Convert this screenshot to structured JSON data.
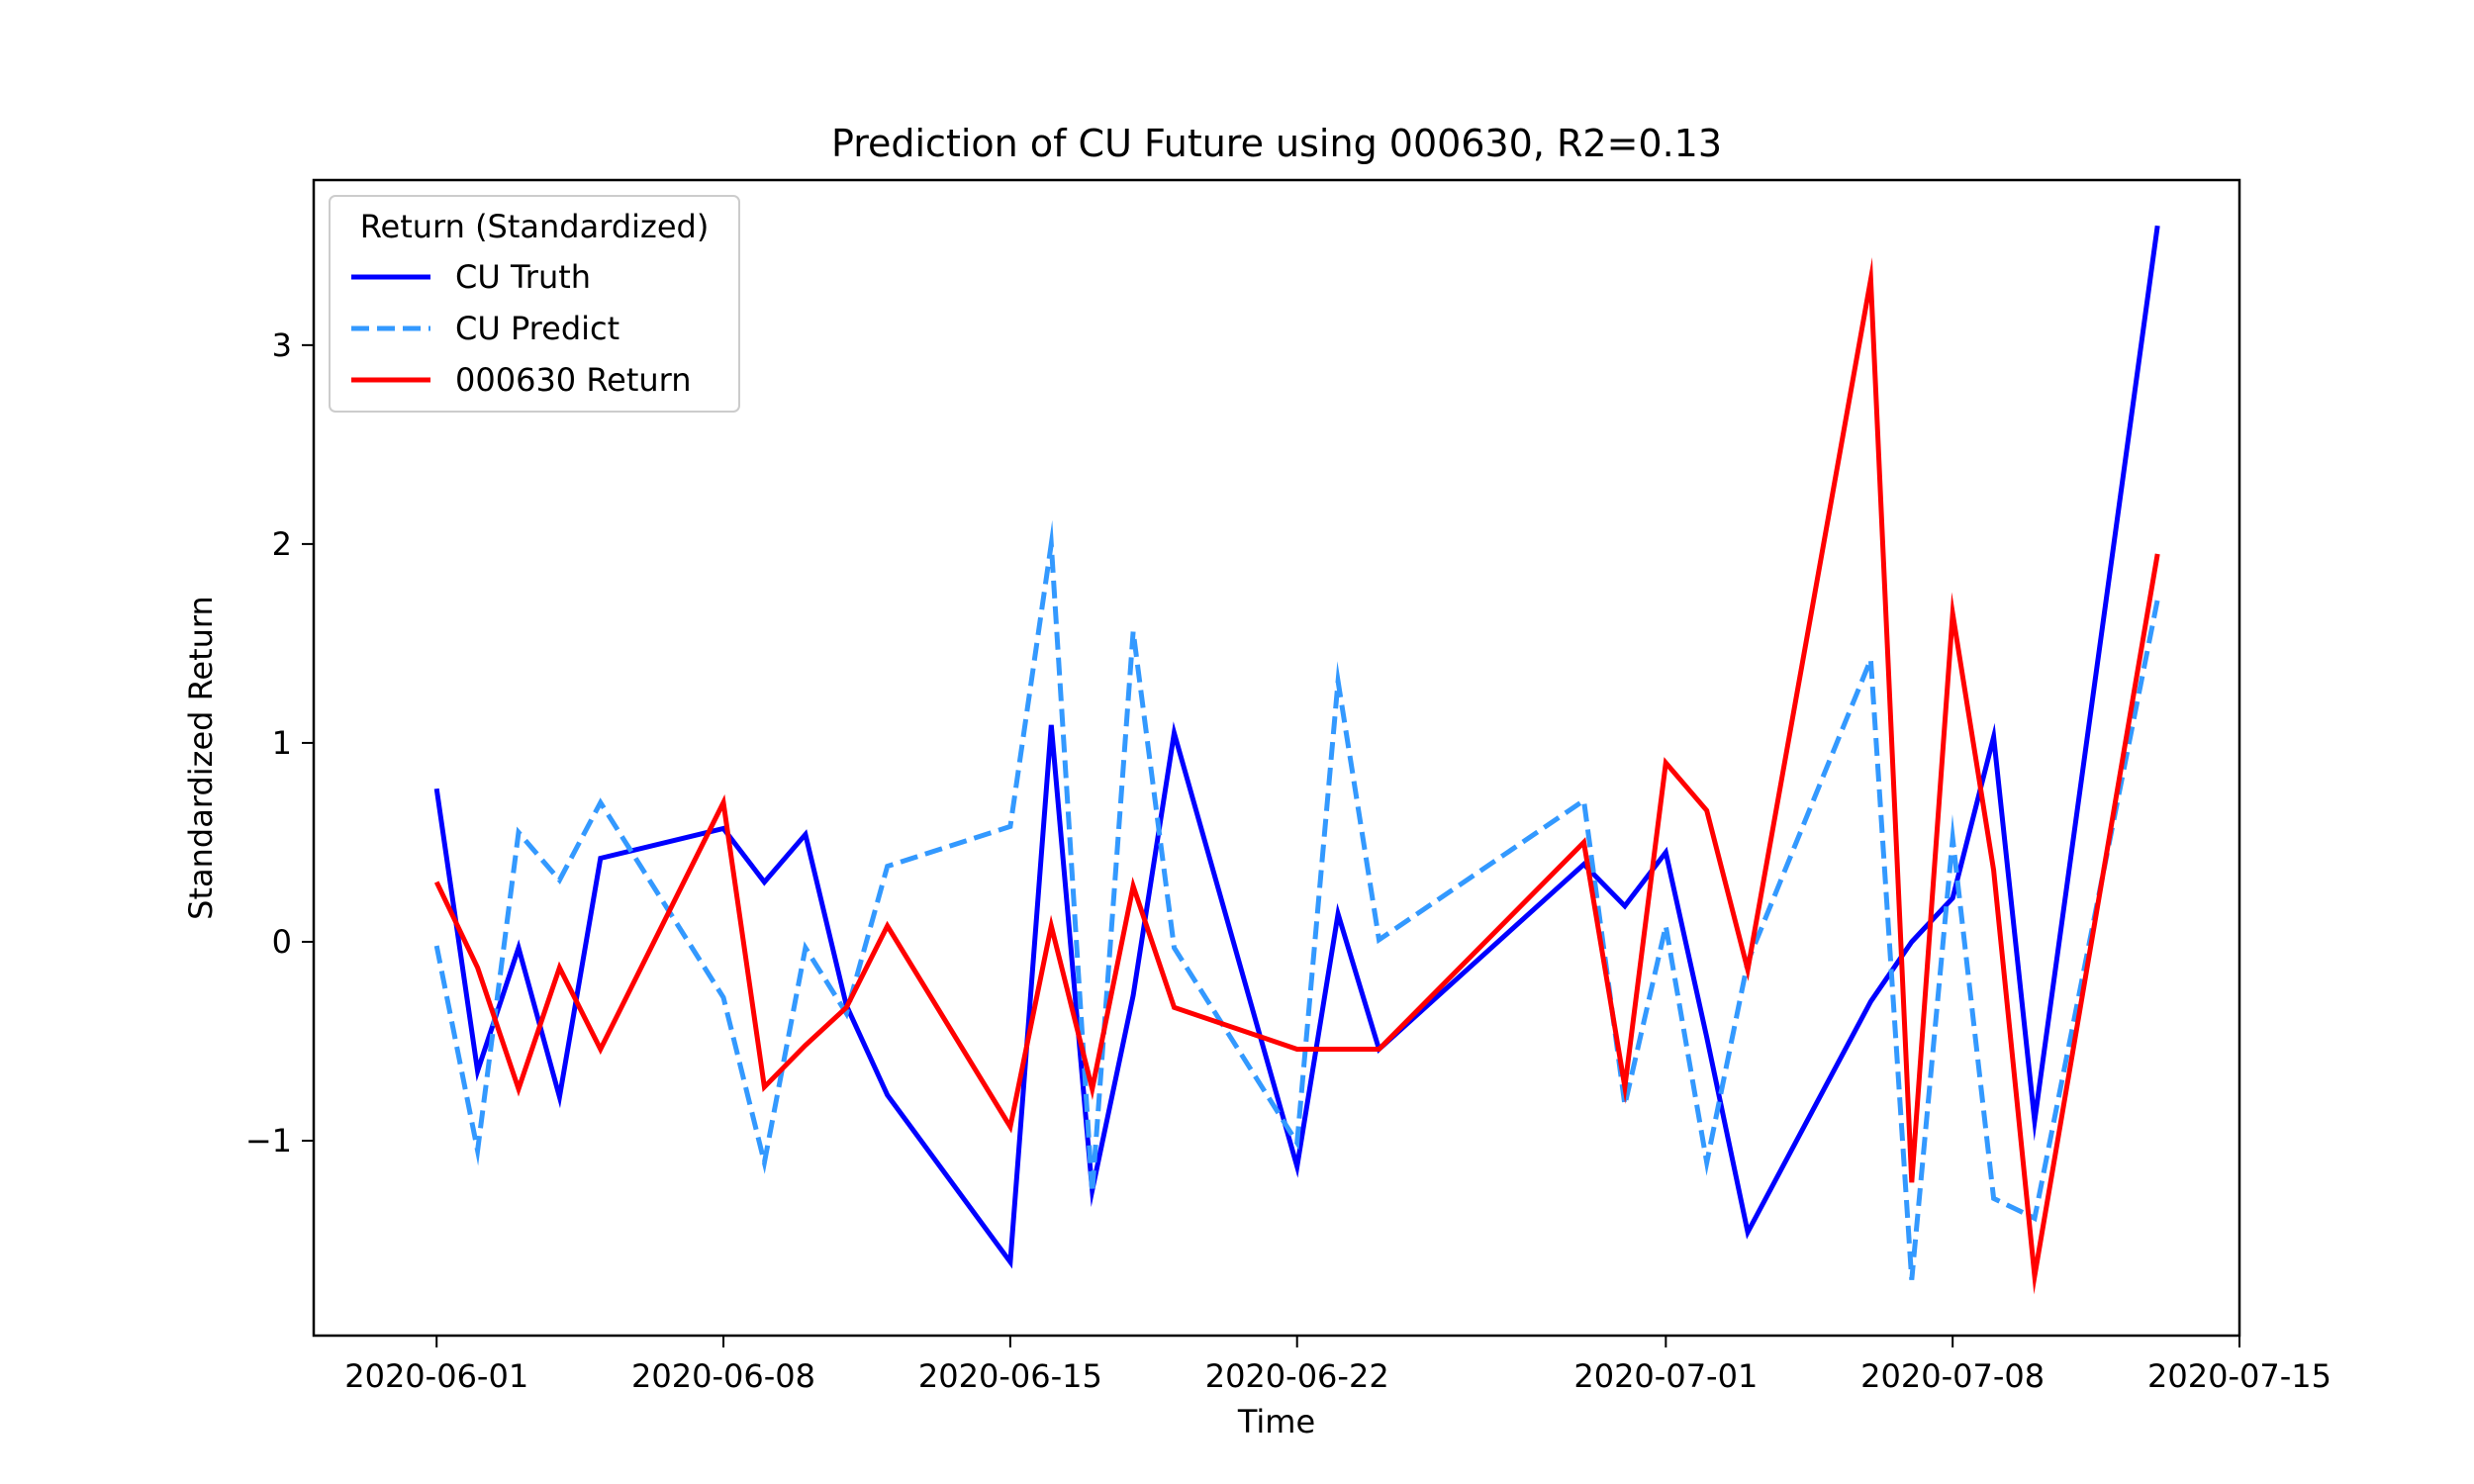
{
  "chart_data": {
    "type": "line",
    "title": "Prediction of CU Future using 000630, R2=0.13",
    "xlabel": "Time",
    "ylabel": "Standardized Return",
    "xlim": [
      "2020-05-29",
      "2020-07-15"
    ],
    "ylim": [
      -1.98,
      3.83
    ],
    "grid": false,
    "legend": {
      "title": "Return (Standardized)",
      "position": "top-left"
    },
    "x_ticks": [
      "2020-06-01",
      "2020-06-08",
      "2020-06-15",
      "2020-06-22",
      "2020-07-01",
      "2020-07-08",
      "2020-07-15"
    ],
    "y_ticks": [
      -1,
      0,
      1,
      2,
      3
    ],
    "y_tick_labels": [
      "−1",
      "0",
      "1",
      "2",
      "3"
    ],
    "x": [
      "2020-06-01",
      "2020-06-02",
      "2020-06-03",
      "2020-06-04",
      "2020-06-05",
      "2020-06-08",
      "2020-06-09",
      "2020-06-10",
      "2020-06-11",
      "2020-06-12",
      "2020-06-15",
      "2020-06-16",
      "2020-06-17",
      "2020-06-18",
      "2020-06-19",
      "2020-06-22",
      "2020-06-23",
      "2020-06-24",
      "2020-06-29",
      "2020-06-30",
      "2020-07-01",
      "2020-07-02",
      "2020-07-03",
      "2020-07-06",
      "2020-07-07",
      "2020-07-08",
      "2020-07-09",
      "2020-07-10",
      "2020-07-13"
    ],
    "series": [
      {
        "name": "CU Truth",
        "color": "#0000ff",
        "style": "solid",
        "values": [
          0.77,
          -0.65,
          -0.03,
          -0.78,
          0.42,
          0.57,
          0.3,
          0.54,
          -0.32,
          -0.77,
          -1.61,
          1.09,
          -1.25,
          -0.27,
          1.05,
          -1.13,
          0.14,
          -0.54,
          0.39,
          0.18,
          0.45,
          -0.48,
          -1.46,
          -0.3,
          0.0,
          0.22,
          1.03,
          -0.9,
          3.6
        ]
      },
      {
        "name": "CU Predict",
        "color": "#3399ff",
        "style": "dashed",
        "values": [
          -0.02,
          -1.05,
          0.55,
          0.31,
          0.7,
          -0.28,
          -1.11,
          -0.03,
          -0.36,
          0.38,
          0.58,
          2.0,
          -1.26,
          1.56,
          -0.03,
          -1.01,
          1.31,
          0.01,
          0.71,
          -0.82,
          0.08,
          -1.11,
          -0.1,
          1.42,
          -1.7,
          0.52,
          -1.29,
          -1.39,
          1.72
        ]
      },
      {
        "name": "000630 Return",
        "color": "#ff0000",
        "style": "solid",
        "values": [
          0.3,
          -0.13,
          -0.74,
          -0.13,
          -0.54,
          0.7,
          -0.73,
          -0.52,
          -0.33,
          0.08,
          -0.93,
          0.08,
          -0.74,
          0.28,
          -0.33,
          -0.54,
          -0.54,
          -0.54,
          0.5,
          -0.73,
          0.9,
          0.66,
          -0.14,
          3.33,
          -1.21,
          1.65,
          0.36,
          -1.68,
          1.95
        ]
      }
    ]
  }
}
